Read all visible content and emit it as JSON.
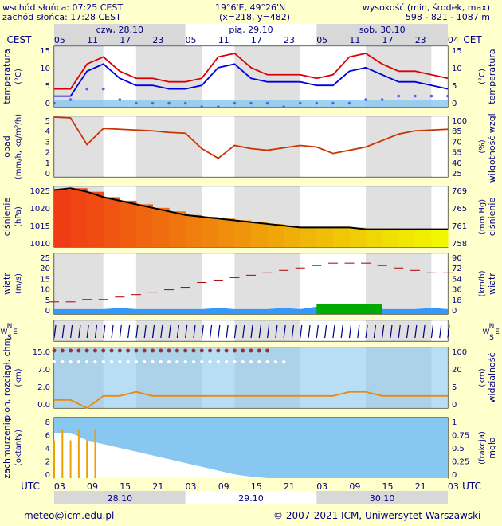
{
  "header": {
    "sunrise": "wschód słońca: 07:25 CEST",
    "sunset": "zachód słońca: 17:28 CEST",
    "coords": "19°6'E, 49°26'N",
    "grid": "(x=218, y=482)",
    "altitude_label": "wysokość (min, środek, max)",
    "altitude_values": "598 - 821 - 1087 m"
  },
  "top_axis": {
    "left_tz": "CEST",
    "right_tz": "CET",
    "days": [
      "czw, 28.10",
      "pią, 29.10",
      "sob, 30.10"
    ],
    "hours": [
      "05",
      "11",
      "17",
      "23",
      "05",
      "11",
      "17",
      "23",
      "05",
      "11",
      "17",
      "23",
      "04"
    ]
  },
  "bottom_axis": {
    "left_tz": "UTC",
    "right_tz": "UTC",
    "hours": [
      "03",
      "09",
      "15",
      "21",
      "03",
      "09",
      "15",
      "21",
      "03",
      "09",
      "15",
      "21",
      "03"
    ],
    "dates": [
      "28.10",
      "29.10",
      "30.10"
    ]
  },
  "panels": {
    "temperature": {
      "left_label": "temperatura",
      "left_unit": "(°C)",
      "right_label": "temperatura",
      "right_unit": "(°C)",
      "ticks": [
        "15",
        "10",
        "5",
        "0"
      ],
      "right_ticks": [
        "15",
        "10",
        "5",
        "0"
      ]
    },
    "precip": {
      "left_label": "opad",
      "left_unit": "(mm/h, kg/m²/h)",
      "right_label": "wilgotność wzgl.",
      "right_unit": "(%)",
      "ticks": [
        "5",
        "4",
        "3",
        "2",
        "1",
        "0"
      ],
      "right_ticks": [
        "100",
        "85",
        "70",
        "55",
        "40",
        "25"
      ]
    },
    "pressure": {
      "left_label": "ciśnienie",
      "left_unit": "(hPa)",
      "right_label": "ciśnienie",
      "right_unit": "(mm Hg)",
      "ticks": [
        "1025",
        "1020",
        "1015",
        "1010"
      ],
      "right_ticks": [
        "769",
        "765",
        "761",
        "758"
      ]
    },
    "wind": {
      "left_label": "wiatr",
      "left_unit": "(m/s)",
      "right_label": "wiatr",
      "right_unit": "(km/h)",
      "ticks": [
        "25",
        "20",
        "15",
        "10",
        "5",
        "0"
      ],
      "right_ticks": [
        "90",
        "72",
        "54",
        "36",
        "18",
        "0"
      ]
    },
    "direction": {
      "left": [
        "N",
        "W",
        "E",
        "S"
      ],
      "right": [
        "N",
        "W",
        "E",
        "S"
      ]
    },
    "visibility": {
      "left_label": "pion. rozciągł. chm.",
      "left_unit": "(km)",
      "right_label": "widzialność",
      "right_unit": "(km)",
      "ticks": [
        "15.0",
        "7.0",
        "2.0",
        "0.0"
      ],
      "right_ticks": [
        "100",
        "20",
        "5",
        "0"
      ]
    },
    "cloud": {
      "left_label": "zachmurzenie",
      "left_unit": "(oktanty)",
      "right_label": "mgła",
      "right_unit": "(frakcja)",
      "ticks": [
        "8",
        "6",
        "4",
        "2",
        "0"
      ],
      "right_ticks": [
        "1",
        "0.75",
        "0.5",
        "0.25",
        "0"
      ]
    }
  },
  "footer": {
    "email": "meteo@icm.edu.pl",
    "copyright": "© 2007-2021 ICM, Uniwersytet Warszawski"
  },
  "chart_data": {
    "type": "line",
    "x_hours": [
      0,
      3,
      6,
      9,
      12,
      15,
      18,
      21,
      24,
      27,
      30,
      33,
      36,
      39,
      42,
      45,
      48,
      51,
      54,
      57,
      60,
      63,
      66,
      69,
      72
    ],
    "temperature": {
      "max": [
        3,
        3,
        10,
        12,
        8,
        6,
        6,
        5,
        5,
        6,
        12,
        13,
        9,
        7,
        7,
        7,
        6,
        7,
        12,
        13,
        10,
        8,
        8,
        7,
        6
      ],
      "mid": [
        1,
        1,
        8,
        10,
        6,
        4,
        4,
        3,
        3,
        4,
        9,
        10,
        6,
        5,
        5,
        5,
        4,
        4,
        8,
        9,
        7,
        5,
        5,
        4,
        3
      ],
      "dew": [
        -1,
        0,
        3,
        3,
        0,
        -1,
        -1,
        -1,
        -1,
        -2,
        -2,
        -1,
        -1,
        -1,
        -2,
        -1,
        -1,
        -1,
        -1,
        0,
        0,
        1,
        1,
        1,
        1
      ],
      "ylim": [
        -2,
        15
      ]
    },
    "humidity": {
      "values": [
        99,
        98,
        65,
        85,
        84,
        83,
        82,
        80,
        79,
        60,
        48,
        64,
        60,
        58,
        61,
        64,
        62,
        54,
        58,
        62,
        70,
        78,
        82,
        83,
        84
      ],
      "ylim": [
        25,
        100
      ]
    },
    "pressure": {
      "values": [
        1026,
        1026.5,
        1025.5,
        1024,
        1023,
        1022,
        1021,
        1020,
        1019,
        1018.5,
        1018,
        1017.5,
        1017,
        1016.5,
        1016,
        1015.5,
        1015.5,
        1015.5,
        1015.5,
        1015,
        1015,
        1015,
        1015,
        1015,
        1015
      ],
      "ylim": [
        1010,
        1027
      ]
    },
    "wind": {
      "mean": [
        2,
        2,
        2,
        2,
        2.5,
        2,
        2,
        2,
        2,
        2,
        2.5,
        2,
        2,
        2,
        2.5,
        2,
        3,
        3,
        3,
        3,
        2,
        2,
        2,
        2.5,
        2
      ],
      "gust": [
        5,
        5,
        6,
        6,
        7,
        8,
        9,
        10,
        11,
        13,
        14,
        15,
        16,
        17,
        18,
        19,
        20,
        21,
        21,
        21,
        20,
        19,
        18,
        17,
        17
      ],
      "ylim": [
        0,
        25
      ]
    },
    "visibility": {
      "values": [
        2,
        2,
        0,
        3,
        3,
        4,
        3,
        3,
        3,
        3,
        3,
        3,
        3,
        3,
        3,
        3,
        3,
        3,
        4,
        4,
        3,
        3,
        3,
        3,
        3
      ],
      "ylim": [
        0,
        15
      ]
    },
    "cloud": {
      "values": [
        6,
        6,
        5,
        4.5,
        4,
        3.5,
        3,
        2.5,
        2,
        1.5,
        1,
        0.5,
        0.2,
        0,
        0,
        0,
        0,
        0,
        0,
        0,
        0,
        0,
        0,
        0,
        0
      ],
      "ylim": [
        0,
        8
      ]
    }
  }
}
